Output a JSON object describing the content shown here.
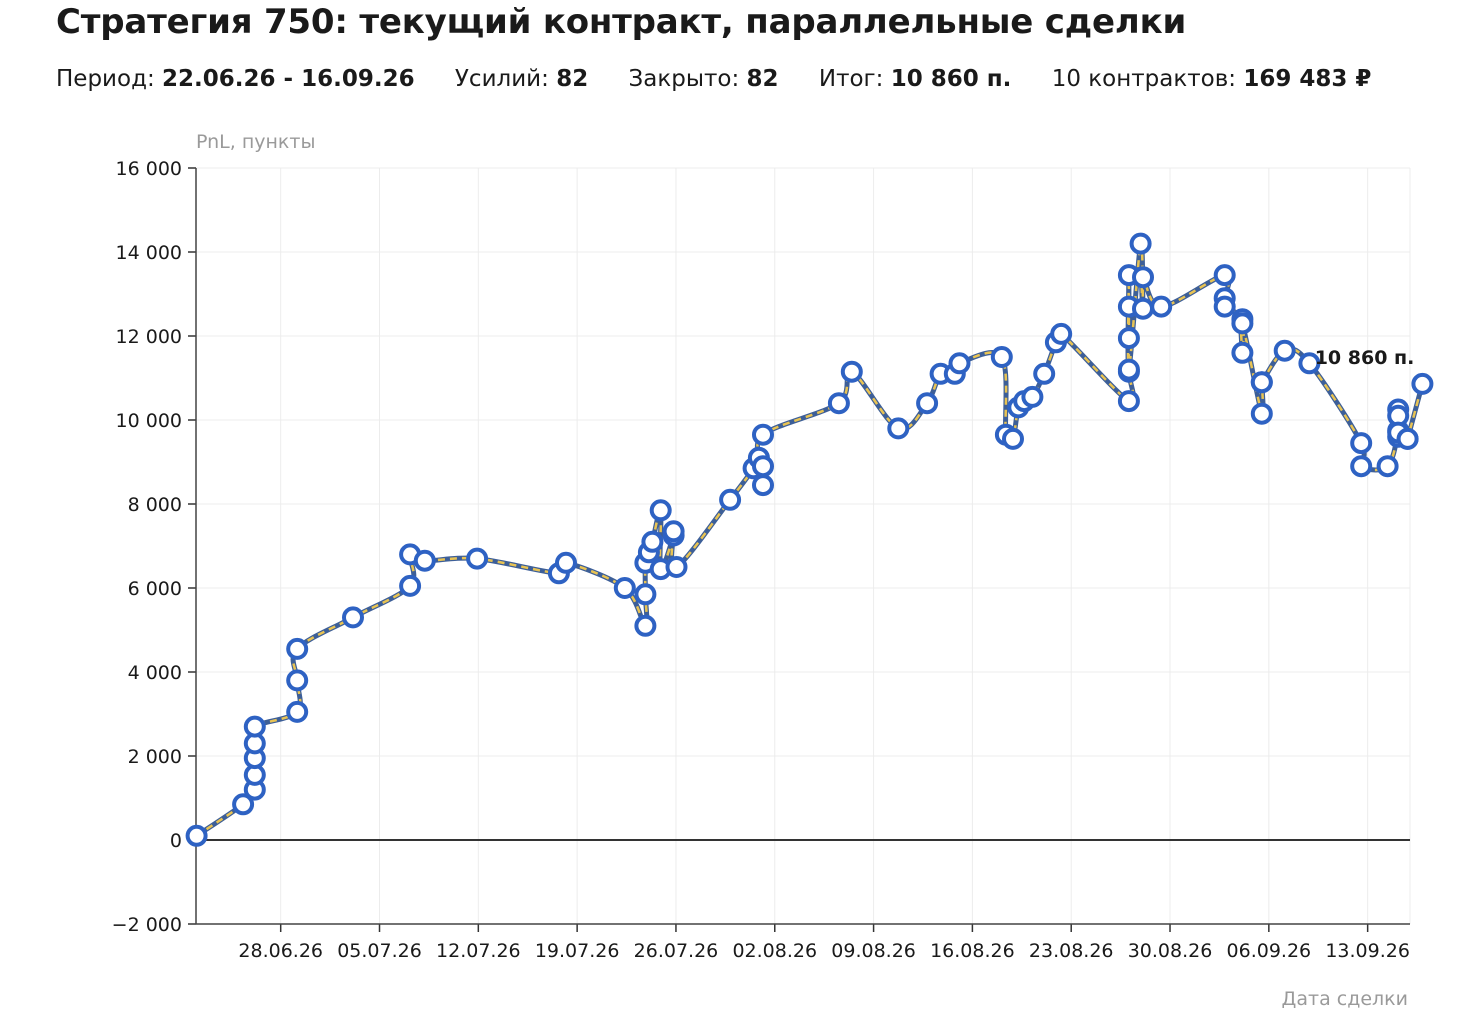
{
  "header": {
    "title": "Стратегия 750: текущий контракт, параллельные сделки",
    "period_label": "Период:",
    "period_value": "22.06.26 - 16.09.26",
    "efforts_label": "Усилий:",
    "efforts_value": "82",
    "closed_label": "Закрыто:",
    "closed_value": "82",
    "total_label": "Итог:",
    "total_value": "10 860 п.",
    "contracts_label": "10 контрактов:",
    "contracts_value": "169 483 ₽"
  },
  "colors": {
    "line_outer": "#3d5f98",
    "line_inner": "#e8c353",
    "marker_stroke": "#2e62c3",
    "marker_fill": "#ffffff",
    "zero_line": "#333333",
    "grid": "#ececec"
  },
  "chart_data": {
    "type": "line",
    "ylabel": "PnL, пункты",
    "xlabel": "Дата сделки",
    "ylim": [
      -2000,
      16000
    ],
    "yticks": [
      -2000,
      0,
      2000,
      4000,
      6000,
      8000,
      10000,
      12000,
      14000,
      16000
    ],
    "ytick_labels": [
      "−2 000",
      "0",
      "2 000",
      "4 000",
      "6 000",
      "8 000",
      "10 000",
      "12 000",
      "14 000",
      "16 000"
    ],
    "xlim": [
      "22.06.26",
      "16.09.26"
    ],
    "xticks": [
      "28.06.26",
      "05.07.26",
      "12.07.26",
      "19.07.26",
      "26.07.26",
      "02.08.26",
      "09.08.26",
      "16.08.26",
      "23.08.26",
      "30.08.26",
      "06.09.26",
      "13.09.26"
    ],
    "grid": true,
    "end_label": "10 860 п.",
    "series": [
      {
        "x": [
          "22.06.26 01:00",
          "25.06.26 08:00",
          "26.06.26 04:00",
          "26.06.26 04:00",
          "26.06.26 04:00",
          "26.06.26 04:00",
          "26.06.26 04:00",
          "29.06.26 04:00",
          "29.06.26 04:00",
          "29.06.26 04:00",
          "03.07.26 03:00",
          "07.07.26 04:00",
          "07.07.26 04:00",
          "08.07.26 05:00",
          "11.07.26 22:00",
          "17.07.26 17:00",
          "18.07.26 05:00",
          "22.07.26 09:00",
          "23.07.26 20:00",
          "23.07.26 20:00",
          "23.07.26 20:00",
          "24.07.26 02:00",
          "24.07.26 08:00",
          "24.07.26 22:00",
          "24.07.26 22:00",
          "25.07.26 20:00",
          "25.07.26 20:00",
          "26.07.26 01:00",
          "29.07.26 20:00",
          "31.07.26 12:00",
          "31.07.26 21:00",
          "01.08.26 04:00",
          "01.08.26 04:00",
          "01.08.26 04:00",
          "06.08.26 13:00",
          "07.08.26 11:00",
          "10.08.26 18:00",
          "12.08.26 19:00",
          "13.08.26 18:00",
          "14.08.26 18:00",
          "15.08.26 02:00",
          "18.08.26 02:00",
          "18.08.26 09:00",
          "18.08.26 21:00",
          "19.08.26 06:00",
          "19.08.26 16:00",
          "20.08.26 06:00",
          "21.08.26 02:00",
          "21.08.26 22:00",
          "22.08.26 07:00",
          "27.08.26 02:00",
          "27.08.26 02:00",
          "27.08.26 02:00",
          "27.08.26 02:00",
          "27.08.26 02:00",
          "27.08.26 02:00",
          "27.08.26 22:00",
          "28.08.26 02:00",
          "28.08.26 02:00",
          "29.08.26 09:00",
          "02.09.26 21:00",
          "02.09.26 21:00",
          "02.09.26 21:00",
          "04.09.26 03:00",
          "04.09.26 03:00",
          "04.09.26 03:00",
          "05.09.26 12:00",
          "05.09.26 12:00",
          "05.09.26 12:00",
          "07.09.26 03:00",
          "08.09.26 21:00",
          "12.09.26 13:00",
          "12.09.26 13:00",
          "14.09.26 10:00",
          "15.09.26 04:00",
          "15.09.26 04:00",
          "15.09.26 04:00",
          "15.09.26 04:00",
          "15.09.26 04:00",
          "15.09.26 20:00",
          "15.09.26 20:00",
          "16.09.26 21:00"
        ],
        "y": [
          100,
          850,
          1200,
          1550,
          1950,
          2300,
          2700,
          3050,
          3800,
          4550,
          5300,
          6050,
          6800,
          6650,
          6700,
          6350,
          6600,
          6000,
          5100,
          5850,
          6600,
          6850,
          7100,
          7850,
          6450,
          7250,
          7350,
          6500,
          8100,
          8850,
          9100,
          8450,
          8900,
          9650,
          10400,
          11150,
          9800,
          10400,
          11100,
          11100,
          11350,
          11500,
          9650,
          9550,
          10300,
          10450,
          10550,
          11100,
          11850,
          12050,
          10450,
          11150,
          11950,
          12700,
          13450,
          11200,
          14200,
          12650,
          13400,
          12700,
          13450,
          12900,
          12700,
          12400,
          11600,
          12300,
          10150,
          10900,
          10900,
          11650,
          11350,
          9450,
          8900,
          8900,
          9750,
          10250,
          9600,
          10100,
          9700,
          9550,
          9550,
          10860
        ]
      }
    ]
  }
}
